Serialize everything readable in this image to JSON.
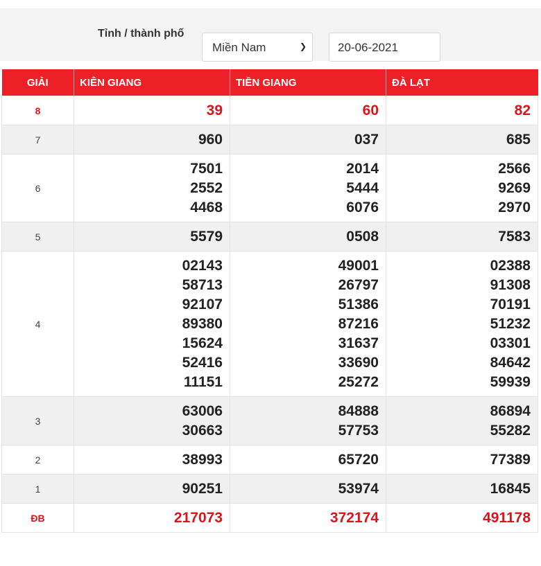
{
  "filter": {
    "label": "Tỉnh / thành phố",
    "region": "Miền Nam",
    "date": "20-06-2021"
  },
  "table": {
    "headers": [
      "GIẢI",
      "KIÊN GIANG",
      "TIỀN GIANG",
      "ĐÀ LẠT"
    ],
    "rows": [
      {
        "prize": "8",
        "highlight": true,
        "values": [
          [
            "39"
          ],
          [
            "60"
          ],
          [
            "82"
          ]
        ]
      },
      {
        "prize": "7",
        "values": [
          [
            "960"
          ],
          [
            "037"
          ],
          [
            "685"
          ]
        ]
      },
      {
        "prize": "6",
        "values": [
          [
            "7501",
            "2552",
            "4468"
          ],
          [
            "2014",
            "5444",
            "6076"
          ],
          [
            "2566",
            "9269",
            "2970"
          ]
        ]
      },
      {
        "prize": "5",
        "values": [
          [
            "5579"
          ],
          [
            "0508"
          ],
          [
            "7583"
          ]
        ]
      },
      {
        "prize": "4",
        "values": [
          [
            "02143",
            "58713",
            "92107",
            "89380",
            "15624",
            "52416",
            "11151"
          ],
          [
            "49001",
            "26797",
            "51386",
            "87216",
            "31637",
            "33690",
            "25272"
          ],
          [
            "02388",
            "91308",
            "70191",
            "51232",
            "03301",
            "84642",
            "59939"
          ]
        ]
      },
      {
        "prize": "3",
        "values": [
          [
            "63006",
            "30663"
          ],
          [
            "84888",
            "57753"
          ],
          [
            "86894",
            "55282"
          ]
        ]
      },
      {
        "prize": "2",
        "values": [
          [
            "38993"
          ],
          [
            "65720"
          ],
          [
            "77389"
          ]
        ]
      },
      {
        "prize": "1",
        "values": [
          [
            "90251"
          ],
          [
            "53974"
          ],
          [
            "16845"
          ]
        ]
      },
      {
        "prize": "ĐB",
        "highlight": true,
        "values": [
          [
            "217073"
          ],
          [
            "372174"
          ],
          [
            "491178"
          ]
        ]
      }
    ]
  },
  "colors": {
    "header_bg": "#ee2027",
    "highlight_text": "#d8141c",
    "alt_row": "#f0f0f0"
  }
}
